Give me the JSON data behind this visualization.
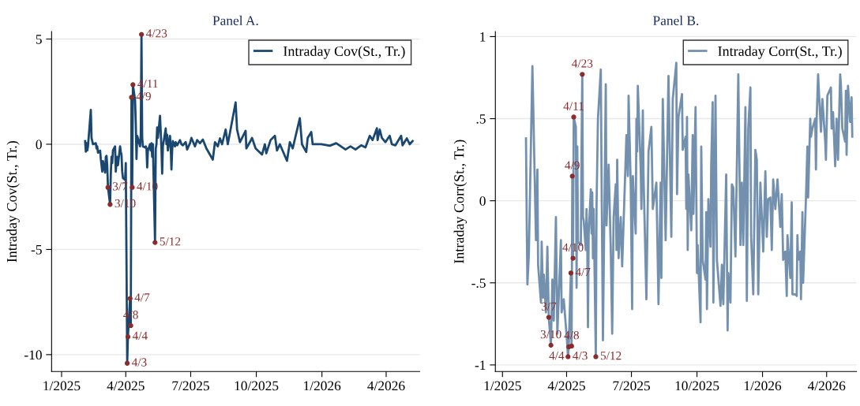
{
  "chart_data": [
    {
      "type": "line",
      "title": "Panel A.",
      "ylabel": "Intraday Cov(St., Tr.)",
      "legend": "top right",
      "grid": "y",
      "marker": "none",
      "line_style": "solid",
      "xlim": [
        "2024-12-18",
        "2026-05-18"
      ],
      "ylim": [
        -10.8,
        5.35
      ],
      "xticks": [
        {
          "value": "2025-01-01",
          "label": "1/2025"
        },
        {
          "value": "2025-04-01",
          "label": "4/2025"
        },
        {
          "value": "2025-07-01",
          "label": "7/2025"
        },
        {
          "value": "2025-10-01",
          "label": "10/2025"
        },
        {
          "value": "2026-01-01",
          "label": "1/2026"
        },
        {
          "value": "2026-04-01",
          "label": "4/2026"
        }
      ],
      "yticks": [
        5,
        0,
        -5,
        -10
      ],
      "series": [
        {
          "name": "Intraday Cov(St., Tr.)",
          "color": "#1a476f",
          "x": [
            "2025-02-03",
            "2025-02-04",
            "2025-02-05",
            "2025-02-06",
            "2025-02-07",
            "2025-02-11",
            "2025-02-12",
            "2025-02-13",
            "2025-02-14",
            "2025-02-18",
            "2025-02-19",
            "2025-02-20",
            "2025-02-21",
            "2025-02-24",
            "2025-02-25",
            "2025-02-27",
            "2025-02-28",
            "2025-03-03",
            "2025-03-04",
            "2025-03-05",
            "2025-03-06",
            "2025-03-07",
            "2025-03-10",
            "2025-03-11",
            "2025-03-12",
            "2025-03-13",
            "2025-03-14",
            "2025-03-17",
            "2025-03-18",
            "2025-03-19",
            "2025-03-20",
            "2025-03-21",
            "2025-03-24",
            "2025-03-25",
            "2025-03-26",
            "2025-03-27",
            "2025-03-28",
            "2025-03-31",
            "2025-04-01",
            "2025-04-03",
            "2025-04-04",
            "2025-04-07",
            "2025-04-08",
            "2025-04-09",
            "2025-04-10",
            "2025-04-11",
            "2025-04-14",
            "2025-04-15",
            "2025-04-16",
            "2025-04-17",
            "2025-04-21",
            "2025-04-22",
            "2025-04-23",
            "2025-04-24",
            "2025-04-25",
            "2025-04-28",
            "2025-04-29",
            "2025-04-30",
            "2025-05-01",
            "2025-05-02",
            "2025-05-05",
            "2025-05-06",
            "2025-05-07",
            "2025-05-08",
            "2025-05-09",
            "2025-05-12",
            "2025-05-13",
            "2025-05-14",
            "2025-05-15",
            "2025-05-16",
            "2025-05-19",
            "2025-05-20",
            "2025-05-21",
            "2025-05-22",
            "2025-05-23",
            "2025-05-27",
            "2025-05-28",
            "2025-05-29",
            "2025-05-30",
            "2025-06-02",
            "2025-06-03",
            "2025-06-04",
            "2025-06-05",
            "2025-06-06",
            "2025-06-09",
            "2025-06-10",
            "2025-06-12",
            "2025-06-16",
            "2025-06-18",
            "2025-06-20",
            "2025-06-24",
            "2025-06-26",
            "2025-06-30",
            "2025-07-02",
            "2025-07-07",
            "2025-07-10",
            "2025-07-14",
            "2025-07-18",
            "2025-07-23",
            "2025-08-01",
            "2025-08-04",
            "2025-08-08",
            "2025-08-11",
            "2025-08-14",
            "2025-08-19",
            "2025-08-22",
            "2025-09-02",
            "2025-09-04",
            "2025-09-08",
            "2025-09-16",
            "2025-09-17",
            "2025-09-22",
            "2025-09-25",
            "2025-09-30",
            "2025-10-09",
            "2025-10-13",
            "2025-10-15",
            "2025-10-21",
            "2025-10-27",
            "2025-10-30",
            "2025-11-03",
            "2025-11-13",
            "2025-11-17",
            "2025-11-21",
            "2025-12-01",
            "2025-12-04",
            "2025-12-10",
            "2025-12-12",
            "2025-12-17",
            "2025-12-19",
            "2025-12-31",
            "2026-01-12",
            "2026-01-21",
            "2026-02-03",
            "2026-02-10",
            "2026-02-17",
            "2026-02-25",
            "2026-03-03",
            "2026-03-09",
            "2026-03-13",
            "2026-03-19",
            "2026-03-20",
            "2026-03-23",
            "2026-03-26",
            "2026-03-31",
            "2026-04-06",
            "2026-04-09",
            "2026-04-14",
            "2026-04-22",
            "2026-04-24",
            "2026-04-30",
            "2026-05-04",
            "2026-05-08"
          ],
          "values": [
            0.15,
            -0.35,
            0.05,
            -0.3,
            -0.1,
            1.63,
            0.3,
            0.15,
            0.0,
            0.05,
            -0.2,
            -0.1,
            -0.4,
            -0.3,
            -0.7,
            -1.3,
            -0.8,
            -1.35,
            -0.6,
            -0.55,
            -1.0,
            -2.05,
            -2.86,
            -1.4,
            -0.6,
            -0.9,
            -0.3,
            -0.1,
            -1.3,
            -0.8,
            -0.6,
            -1.0,
            -0.1,
            -0.35,
            -0.5,
            -1.3,
            -1.6,
            -1.7,
            -0.9,
            -10.41,
            -9.15,
            -7.33,
            -8.62,
            2.23,
            -2.05,
            2.83,
            2.1,
            1.0,
            -0.7,
            0.4,
            -0.1,
            0.46,
            5.22,
            0.3,
            -0.1,
            -0.15,
            -0.1,
            -0.2,
            -1.1,
            -0.3,
            0.0,
            -0.3,
            0.05,
            -0.6,
            0.0,
            -4.67,
            -0.2,
            0.0,
            0.8,
            0.3,
            1.35,
            0.6,
            -0.2,
            -1.4,
            -0.1,
            0.75,
            0.0,
            0.45,
            -0.3,
            0.4,
            -0.1,
            -1.2,
            -0.3,
            0.15,
            -0.1,
            0.1,
            -0.05,
            0.2,
            0.0,
            -0.05,
            0.1,
            -0.25,
            0.05,
            0.3,
            -0.1,
            0.2,
            0.05,
            0.22,
            -0.2,
            -0.73,
            0.1,
            -0.1,
            0.28,
            0.0,
            0.7,
            0.0,
            1.99,
            0.7,
            0.1,
            0.64,
            -0.2,
            0.1,
            0.3,
            -0.2,
            -0.49,
            0.0,
            -0.43,
            0.2,
            0.4,
            -0.3,
            0.0,
            -0.79,
            0.1,
            -0.2,
            1.24,
            0.0,
            -0.37,
            0.3,
            0.58,
            0.0,
            0.0,
            -0.07,
            0.05,
            -0.25,
            -0.1,
            -0.25,
            -0.05,
            -0.15,
            0.4,
            0.2,
            0.76,
            0.2,
            0.7,
            0.3,
            0.1,
            0.4,
            0.0,
            -0.05,
            0.4,
            -0.05,
            0.28,
            0.0,
            0.15
          ]
        }
      ],
      "annotations": [
        {
          "text": "3/7",
          "x": "2025-03-07",
          "y": -2.05
        },
        {
          "text": "3/10",
          "x": "2025-03-10",
          "y": -2.86
        },
        {
          "text": "4/3",
          "x": "2025-04-03",
          "y": -10.41
        },
        {
          "text": "4/4",
          "x": "2025-04-04",
          "y": -9.15
        },
        {
          "text": "4/7",
          "x": "2025-04-07",
          "y": -7.33
        },
        {
          "text": "4/8",
          "x": "2025-04-08",
          "y": -8.62
        },
        {
          "text": "4/9",
          "x": "2025-04-09",
          "y": 2.23
        },
        {
          "text": "4/10",
          "x": "2025-04-10",
          "y": -2.05
        },
        {
          "text": "4/11",
          "x": "2025-04-11",
          "y": 2.83
        },
        {
          "text": "4/23",
          "x": "2025-04-23",
          "y": 5.22
        },
        {
          "text": "5/12",
          "x": "2025-05-12",
          "y": -4.67
        }
      ]
    },
    {
      "type": "line",
      "title": "Panel B.",
      "ylabel": "Intraday Corr(St., Tr.)",
      "legend": "top right",
      "grid": "y",
      "marker": "none",
      "line_style": "solid",
      "xlim": [
        "2024-12-22",
        "2026-05-13"
      ],
      "ylim": [
        -1.04,
        1.03
      ],
      "xticks": [
        {
          "value": "2025-01-01",
          "label": "1/2025"
        },
        {
          "value": "2025-04-01",
          "label": "4/2025"
        },
        {
          "value": "2025-07-01",
          "label": "7/2025"
        },
        {
          "value": "2025-10-01",
          "label": "10/2025"
        },
        {
          "value": "2026-01-01",
          "label": "1/2026"
        },
        {
          "value": "2026-04-01",
          "label": "4/2026"
        }
      ],
      "yticks": [
        1,
        {
          "value": 0.5,
          "label": ".5"
        },
        0,
        {
          "value": -0.5,
          "label": "-.5"
        },
        -1
      ],
      "series": [
        {
          "name": "Intraday Corr(St., Tr.)",
          "color": "#7391ae",
          "x": [
            "2025-02-03",
            "2025-02-04",
            "2025-02-05",
            "2025-02-07",
            "2025-02-12",
            "2025-02-17",
            "2025-02-19",
            "2025-02-20",
            "2025-02-24",
            "2025-02-25",
            "2025-02-27",
            "2025-02-28",
            "2025-03-03",
            "2025-03-05",
            "2025-03-07",
            "2025-03-10",
            "2025-03-12",
            "2025-03-14",
            "2025-03-17",
            "2025-03-19",
            "2025-03-24",
            "2025-03-25",
            "2025-03-28",
            "2025-04-01",
            "2025-04-03",
            "2025-04-04",
            "2025-04-07",
            "2025-04-08",
            "2025-04-09",
            "2025-04-10",
            "2025-04-11",
            "2025-04-14",
            "2025-04-15",
            "2025-04-16",
            "2025-04-17",
            "2025-04-21",
            "2025-04-22",
            "2025-04-23",
            "2025-04-24",
            "2025-04-25",
            "2025-04-28",
            "2025-04-29",
            "2025-04-30",
            "2025-05-01",
            "2025-05-02",
            "2025-05-05",
            "2025-05-06",
            "2025-05-07",
            "2025-05-08",
            "2025-05-09",
            "2025-05-12",
            "2025-05-13",
            "2025-05-15",
            "2025-05-19",
            "2025-05-20",
            "2025-05-22",
            "2025-05-26",
            "2025-05-27",
            "2025-05-30",
            "2025-06-02",
            "2025-06-04",
            "2025-06-06",
            "2025-06-09",
            "2025-06-10",
            "2025-06-11",
            "2025-06-13",
            "2025-06-16",
            "2025-06-18",
            "2025-06-24",
            "2025-06-26",
            "2025-06-27",
            "2025-06-30",
            "2025-07-02",
            "2025-07-03",
            "2025-07-07",
            "2025-07-08",
            "2025-07-09",
            "2025-07-10",
            "2025-07-14",
            "2025-07-15",
            "2025-07-17",
            "2025-07-18",
            "2025-07-22",
            "2025-07-25",
            "2025-07-29",
            "2025-07-31",
            "2025-08-05",
            "2025-08-08",
            "2025-08-11",
            "2025-08-12",
            "2025-08-14",
            "2025-08-18",
            "2025-08-22",
            "2025-08-26",
            "2025-08-28",
            "2025-09-02",
            "2025-09-03",
            "2025-09-05",
            "2025-09-10",
            "2025-09-11",
            "2025-09-15",
            "2025-09-16",
            "2025-09-17",
            "2025-09-18",
            "2025-09-19",
            "2025-09-23",
            "2025-09-25",
            "2025-09-26",
            "2025-09-29",
            "2025-10-01",
            "2025-10-02",
            "2025-10-06",
            "2025-10-07",
            "2025-10-09",
            "2025-10-13",
            "2025-10-14",
            "2025-10-15",
            "2025-10-17",
            "2025-10-20",
            "2025-10-21",
            "2025-10-23",
            "2025-10-24",
            "2025-10-27",
            "2025-10-29",
            "2025-11-03",
            "2025-11-05",
            "2025-11-06",
            "2025-11-07",
            "2025-11-11",
            "2025-11-13",
            "2025-11-14",
            "2025-11-17",
            "2025-11-19",
            "2025-11-21",
            "2025-11-24",
            "2025-11-28",
            "2025-12-01",
            "2025-12-03",
            "2025-12-05",
            "2025-12-08",
            "2025-12-10",
            "2025-12-12",
            "2025-12-15",
            "2025-12-16",
            "2025-12-19",
            "2025-12-22",
            "2025-12-24",
            "2025-12-26",
            "2025-12-29",
            "2026-01-02",
            "2026-01-05",
            "2026-01-07",
            "2026-01-09",
            "2026-01-12",
            "2026-01-14",
            "2026-01-16",
            "2026-01-19",
            "2026-01-22",
            "2026-01-26",
            "2026-01-28",
            "2026-01-30",
            "2026-02-02",
            "2026-02-04",
            "2026-02-05",
            "2026-02-09",
            "2026-02-11",
            "2026-02-12",
            "2026-02-16",
            "2026-02-18",
            "2026-02-19",
            "2026-02-20",
            "2026-02-23",
            "2026-02-24",
            "2026-02-26",
            "2026-02-27",
            "2026-03-03",
            "2026-03-05",
            "2026-03-06",
            "2026-03-09",
            "2026-03-10",
            "2026-03-12",
            "2026-03-16",
            "2026-03-17",
            "2026-03-18",
            "2026-03-20",
            "2026-03-24",
            "2026-03-26",
            "2026-03-30",
            "2026-03-31",
            "2026-04-02",
            "2026-04-07",
            "2026-04-08",
            "2026-04-10",
            "2026-04-13",
            "2026-04-15",
            "2026-04-17",
            "2026-04-20",
            "2026-04-21",
            "2026-04-23",
            "2026-04-27",
            "2026-04-28",
            "2026-04-29",
            "2026-05-01",
            "2026-05-04",
            "2026-05-06",
            "2026-05-07"
          ],
          "values": [
            0.38,
            -0.11,
            -0.51,
            -0.33,
            0.82,
            -0.24,
            0.19,
            -0.39,
            -0.62,
            -0.25,
            -0.59,
            -0.45,
            -0.68,
            -0.28,
            -0.71,
            -0.88,
            -0.48,
            -0.73,
            -0.1,
            -0.81,
            -0.24,
            -0.68,
            -0.6,
            -0.82,
            -0.95,
            -0.89,
            -0.44,
            -0.885,
            0.15,
            -0.35,
            0.51,
            0.45,
            -0.53,
            0.33,
            -0.25,
            -0.27,
            0.33,
            0.77,
            -0.1,
            -0.12,
            -0.3,
            -0.05,
            -0.25,
            -0.77,
            -0.2,
            0.07,
            -0.2,
            0.05,
            -0.35,
            -0.05,
            -0.95,
            -0.04,
            0.5,
            0.8,
            0.2,
            -0.85,
            0.71,
            -0.15,
            0.22,
            -0.3,
            -0.81,
            -0.1,
            0.1,
            -0.3,
            0.25,
            -0.35,
            -0.1,
            -0.4,
            0.4,
            0.15,
            0.64,
            0.1,
            -0.66,
            0.15,
            -0.2,
            0.5,
            0.3,
            0.7,
            0.2,
            -0.05,
            0.55,
            0.15,
            -0.6,
            0.3,
            0.45,
            -0.05,
            0.11,
            -0.63,
            0.11,
            -0.47,
            0.62,
            -0.24,
            0.76,
            -0.22,
            0.62,
            0.84,
            0.04,
            0.51,
            0.65,
            0.31,
            0.39,
            -0.05,
            0.51,
            -0.3,
            0.16,
            -0.18,
            0.4,
            -0.08,
            0.57,
            -0.44,
            -0.27,
            -0.74,
            0.33,
            -0.36,
            -0.48,
            -0.07,
            -0.66,
            0.01,
            -0.28,
            0.22,
            0.6,
            -0.62,
            0.64,
            -0.36,
            -0.64,
            -0.39,
            -0.56,
            -0.63,
            0.16,
            -0.79,
            -0.44,
            -0.62,
            0.1,
            0.08,
            -0.34,
            0.77,
            -0.27,
            0.11,
            -0.27,
            0.57,
            -0.61,
            0.44,
            0.69,
            -0.21,
            -0.57,
            0.31,
            0.25,
            -0.57,
            0.11,
            -0.31,
            0.18,
            -0.22,
            0.01,
            0.02,
            -0.3,
            0.13,
            -0.05,
            0.13,
            -0.16,
            0.04,
            -0.36,
            -0.31,
            -0.58,
            -0.21,
            -0.47,
            -0.01,
            -0.57,
            -0.57,
            -0.58,
            -0.21,
            -0.36,
            -0.31,
            -0.6,
            -0.07,
            -0.5,
            0.02,
            0.33,
            0.02,
            0.5,
            0.39,
            0.44,
            0.5,
            0.19,
            0.5,
            0.77,
            0.42,
            0.62,
            0.36,
            0.25,
            0.64,
            0.69,
            0.44,
            0.54,
            0.21,
            0.5,
            0.25,
            0.77,
            0.71,
            0.44,
            0.36,
            0.67,
            0.28,
            0.7,
            0.48,
            0.63,
            0.39
          ]
        }
      ],
      "annotations": [
        {
          "text": "3/7",
          "x": "2025-03-07",
          "y": -0.71
        },
        {
          "text": "3/10",
          "x": "2025-03-10",
          "y": -0.88
        },
        {
          "text": "4/3",
          "x": "2025-04-03",
          "y": -0.95
        },
        {
          "text": "4/4",
          "x": "2025-04-04",
          "y": -0.89
        },
        {
          "text": "4/7",
          "x": "2025-04-07",
          "y": -0.44
        },
        {
          "text": "4/8",
          "x": "2025-04-08",
          "y": -0.885
        },
        {
          "text": "4/9",
          "x": "2025-04-09",
          "y": 0.15
        },
        {
          "text": "4/10",
          "x": "2025-04-10",
          "y": -0.35
        },
        {
          "text": "4/11",
          "x": "2025-04-11",
          "y": 0.51
        },
        {
          "text": "4/23",
          "x": "2025-04-23",
          "y": 0.77
        },
        {
          "text": "5/12",
          "x": "2025-05-12",
          "y": -0.95
        }
      ]
    }
  ]
}
